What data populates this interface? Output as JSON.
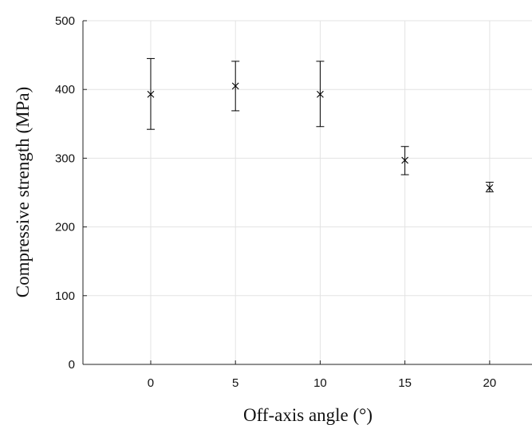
{
  "chart_data": {
    "type": "scatter",
    "xlabel": "Off-axis angle (°)",
    "ylabel": "Compressive strength (MPa)",
    "xlim": [
      -4,
      22.5
    ],
    "ylim": [
      0,
      500
    ],
    "xticks": [
      0,
      5,
      10,
      15,
      20
    ],
    "yticks": [
      0,
      100,
      200,
      300,
      400,
      500
    ],
    "grid": true,
    "marker": "x",
    "points": [
      {
        "x": 0,
        "y": 393,
        "lower": 342,
        "upper": 445
      },
      {
        "x": 5,
        "y": 405,
        "lower": 369,
        "upper": 441
      },
      {
        "x": 10,
        "y": 393,
        "lower": 346,
        "upper": 441
      },
      {
        "x": 15,
        "y": 297,
        "lower": 276,
        "upper": 317
      },
      {
        "x": 20,
        "y": 257,
        "lower": 251,
        "upper": 265
      }
    ]
  }
}
